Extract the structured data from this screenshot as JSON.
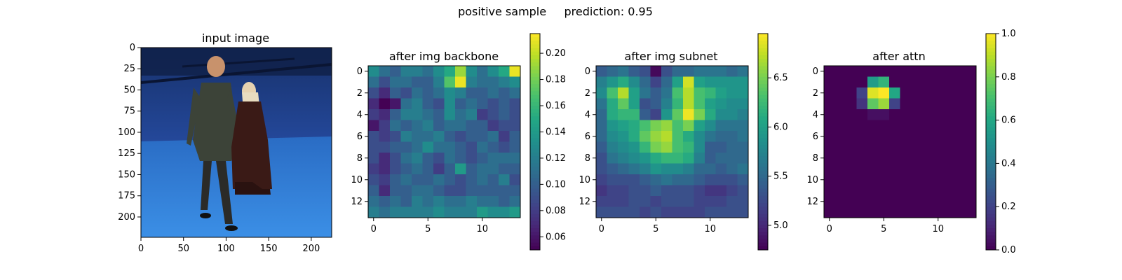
{
  "figure": {
    "suptitle": "positive sample     prediction: 0.95"
  },
  "chart_data": [
    {
      "type": "image",
      "title": "input image",
      "xlim": [
        0,
        224
      ],
      "ylim": [
        224,
        0
      ],
      "xticks": [
        0,
        50,
        100,
        150,
        200
      ],
      "yticks": [
        0,
        25,
        50,
        75,
        100,
        125,
        150,
        175,
        200
      ],
      "image_description_colors": {
        "wall": "#1f3a7a",
        "floor": "#2e7fd6"
      }
    },
    {
      "type": "heatmap",
      "title": "after img backbone",
      "colormap": "viridis",
      "vmin": 0.05,
      "vmax": 0.215,
      "xticks": [
        0,
        5,
        10
      ],
      "yticks": [
        0,
        2,
        4,
        6,
        8,
        10,
        12
      ],
      "colorbar_ticks": [
        0.06,
        0.08,
        0.1,
        0.12,
        0.14,
        0.16,
        0.18,
        0.2
      ],
      "colorbar_ticklabels": [
        "0.06",
        "0.08",
        "0.10",
        "0.12",
        "0.14",
        "0.16",
        "0.18",
        "0.20"
      ],
      "values": [
        [
          0.13,
          0.11,
          0.1,
          0.12,
          0.12,
          0.11,
          0.13,
          0.15,
          0.19,
          0.13,
          0.11,
          0.13,
          0.15,
          0.21
        ],
        [
          0.11,
          0.09,
          0.11,
          0.11,
          0.1,
          0.1,
          0.12,
          0.17,
          0.21,
          0.12,
          0.11,
          0.11,
          0.12,
          0.13
        ],
        [
          0.09,
          0.07,
          0.1,
          0.09,
          0.11,
          0.1,
          0.11,
          0.13,
          0.12,
          0.1,
          0.1,
          0.11,
          0.1,
          0.11
        ],
        [
          0.07,
          0.05,
          0.06,
          0.11,
          0.12,
          0.1,
          0.09,
          0.13,
          0.1,
          0.11,
          0.1,
          0.09,
          0.1,
          0.09
        ],
        [
          0.08,
          0.07,
          0.1,
          0.12,
          0.12,
          0.11,
          0.1,
          0.13,
          0.11,
          0.12,
          0.08,
          0.09,
          0.1,
          0.09
        ],
        [
          0.06,
          0.08,
          0.11,
          0.1,
          0.11,
          0.12,
          0.1,
          0.11,
          0.11,
          0.1,
          0.1,
          0.08,
          0.09,
          0.09
        ],
        [
          0.09,
          0.08,
          0.09,
          0.12,
          0.11,
          0.11,
          0.12,
          0.1,
          0.09,
          0.1,
          0.1,
          0.11,
          0.08,
          0.1
        ],
        [
          0.09,
          0.09,
          0.1,
          0.1,
          0.11,
          0.13,
          0.11,
          0.11,
          0.1,
          0.09,
          0.11,
          0.1,
          0.09,
          0.1
        ],
        [
          0.09,
          0.07,
          0.09,
          0.11,
          0.12,
          0.1,
          0.09,
          0.11,
          0.1,
          0.09,
          0.1,
          0.11,
          0.11,
          0.11
        ],
        [
          0.08,
          0.07,
          0.09,
          0.1,
          0.11,
          0.1,
          0.08,
          0.1,
          0.14,
          0.1,
          0.11,
          0.11,
          0.1,
          0.1
        ],
        [
          0.09,
          0.08,
          0.1,
          0.11,
          0.1,
          0.1,
          0.11,
          0.1,
          0.09,
          0.1,
          0.11,
          0.1,
          0.12,
          0.09
        ],
        [
          0.1,
          0.07,
          0.1,
          0.1,
          0.11,
          0.11,
          0.1,
          0.09,
          0.09,
          0.1,
          0.1,
          0.1,
          0.1,
          0.1
        ],
        [
          0.11,
          0.1,
          0.11,
          0.1,
          0.12,
          0.11,
          0.12,
          0.11,
          0.11,
          0.12,
          0.11,
          0.11,
          0.1,
          0.11
        ],
        [
          0.12,
          0.11,
          0.12,
          0.12,
          0.12,
          0.12,
          0.13,
          0.12,
          0.12,
          0.12,
          0.14,
          0.13,
          0.13,
          0.14
        ]
      ]
    },
    {
      "type": "heatmap",
      "title": "after img subnet",
      "colormap": "viridis",
      "vmin": 4.75,
      "vmax": 6.95,
      "xticks": [
        0,
        5,
        10
      ],
      "yticks": [
        0,
        2,
        4,
        6,
        8,
        10,
        12
      ],
      "colorbar_ticks": [
        5.0,
        5.5,
        6.0,
        6.5
      ],
      "colorbar_ticklabels": [
        "5.0",
        "5.5",
        "6.0",
        "6.5"
      ],
      "values": [
        [
          5.4,
          5.5,
          5.6,
          5.4,
          5.3,
          4.8,
          5.3,
          5.5,
          5.5,
          5.6,
          5.6,
          5.6,
          5.5,
          5.6
        ],
        [
          5.7,
          5.9,
          6.1,
          5.8,
          5.5,
          5.2,
          5.5,
          6.0,
          6.8,
          6.0,
          5.9,
          5.9,
          5.9,
          5.9
        ],
        [
          5.8,
          6.3,
          6.7,
          6.0,
          5.6,
          5.4,
          5.6,
          6.3,
          6.7,
          6.3,
          6.2,
          6.0,
          5.9,
          5.9
        ],
        [
          5.6,
          6.1,
          6.4,
          6.0,
          5.3,
          5.4,
          5.7,
          6.2,
          6.7,
          6.3,
          6.0,
          5.9,
          5.8,
          5.8
        ],
        [
          5.5,
          6.1,
          6.2,
          6.2,
          5.4,
          5.2,
          5.9,
          6.4,
          6.9,
          6.5,
          6.1,
          5.8,
          5.8,
          5.7
        ],
        [
          5.5,
          5.9,
          6.0,
          6.1,
          6.3,
          6.5,
          6.6,
          6.3,
          6.5,
          6.0,
          5.8,
          5.6,
          5.6,
          5.6
        ],
        [
          5.5,
          5.8,
          5.9,
          6.1,
          6.4,
          6.6,
          6.7,
          6.3,
          6.1,
          5.8,
          5.6,
          5.5,
          5.5,
          5.6
        ],
        [
          5.4,
          5.7,
          5.8,
          5.9,
          6.2,
          6.5,
          6.6,
          6.3,
          6.2,
          5.8,
          5.4,
          5.4,
          5.5,
          5.5
        ],
        [
          5.3,
          5.6,
          5.7,
          5.8,
          5.9,
          6.1,
          6.2,
          6.2,
          6.1,
          5.7,
          5.4,
          5.5,
          5.5,
          5.5
        ],
        [
          5.3,
          5.4,
          5.5,
          5.6,
          5.7,
          5.9,
          5.8,
          5.8,
          5.7,
          5.5,
          5.5,
          5.4,
          5.5,
          5.6
        ],
        [
          5.2,
          5.3,
          5.3,
          5.3,
          5.4,
          5.5,
          5.6,
          5.5,
          5.5,
          5.4,
          5.3,
          5.3,
          5.3,
          5.4
        ],
        [
          5.1,
          5.2,
          5.2,
          5.3,
          5.3,
          5.4,
          5.3,
          5.3,
          5.3,
          5.2,
          5.1,
          5.1,
          5.2,
          5.3
        ],
        [
          5.2,
          5.2,
          5.2,
          5.3,
          5.3,
          5.2,
          5.3,
          5.3,
          5.3,
          5.2,
          5.2,
          5.2,
          5.3,
          5.3
        ],
        [
          5.3,
          5.3,
          5.3,
          5.3,
          5.2,
          5.3,
          5.2,
          5.2,
          5.2,
          5.2,
          5.3,
          5.3,
          5.3,
          5.3
        ]
      ]
    },
    {
      "type": "heatmap",
      "title": "after attn",
      "colormap": "viridis",
      "vmin": 0.0,
      "vmax": 1.0,
      "xticks": [
        0,
        5,
        10
      ],
      "yticks": [
        0,
        2,
        4,
        6,
        8,
        10,
        12
      ],
      "colorbar_ticks": [
        0.0,
        0.2,
        0.4,
        0.6,
        0.8,
        1.0
      ],
      "colorbar_ticklabels": [
        "0.0",
        "0.2",
        "0.4",
        "0.6",
        "0.8",
        "1.0"
      ],
      "values": [
        [
          0,
          0,
          0,
          0,
          0,
          0,
          0,
          0,
          0,
          0,
          0,
          0,
          0,
          0
        ],
        [
          0,
          0,
          0,
          0,
          0.55,
          0.65,
          0,
          0,
          0,
          0,
          0,
          0,
          0,
          0
        ],
        [
          0,
          0,
          0,
          0.2,
          0.95,
          1.0,
          0.6,
          0,
          0,
          0,
          0,
          0,
          0,
          0
        ],
        [
          0,
          0,
          0,
          0.15,
          0.75,
          0.85,
          0.2,
          0,
          0,
          0,
          0,
          0,
          0,
          0
        ],
        [
          0,
          0,
          0,
          0,
          0.04,
          0.04,
          0,
          0,
          0,
          0,
          0,
          0,
          0,
          0
        ],
        [
          0,
          0,
          0,
          0,
          0,
          0,
          0,
          0,
          0,
          0,
          0,
          0,
          0,
          0
        ],
        [
          0,
          0,
          0,
          0,
          0,
          0,
          0,
          0,
          0,
          0,
          0,
          0,
          0,
          0
        ],
        [
          0,
          0,
          0,
          0,
          0,
          0,
          0,
          0,
          0,
          0,
          0,
          0,
          0,
          0
        ],
        [
          0,
          0,
          0,
          0,
          0,
          0,
          0,
          0,
          0,
          0,
          0,
          0,
          0,
          0
        ],
        [
          0,
          0,
          0,
          0,
          0,
          0,
          0,
          0,
          0,
          0,
          0,
          0,
          0,
          0
        ],
        [
          0,
          0,
          0,
          0,
          0,
          0,
          0,
          0,
          0,
          0,
          0,
          0,
          0,
          0
        ],
        [
          0,
          0,
          0,
          0,
          0,
          0,
          0,
          0,
          0,
          0,
          0,
          0,
          0,
          0
        ],
        [
          0,
          0,
          0,
          0,
          0,
          0,
          0,
          0,
          0,
          0,
          0,
          0,
          0,
          0
        ],
        [
          0,
          0,
          0,
          0,
          0,
          0,
          0,
          0,
          0,
          0,
          0,
          0,
          0,
          0
        ]
      ]
    }
  ]
}
